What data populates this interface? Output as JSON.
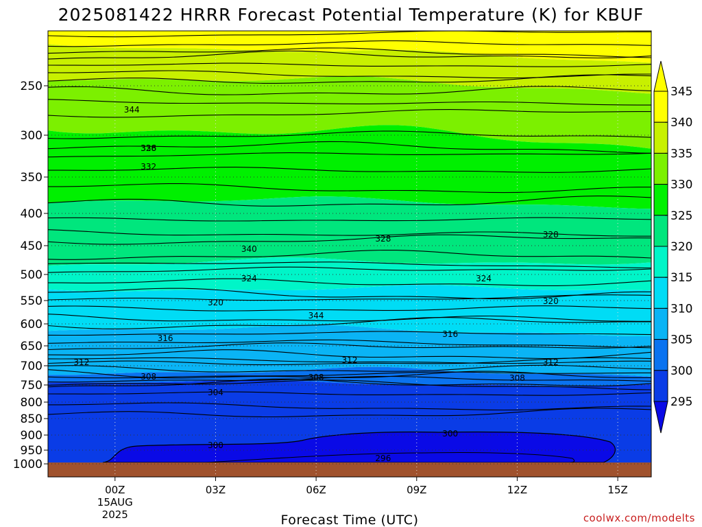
{
  "chart_data": {
    "type": "contour",
    "title": "2025081422 HRRR Forecast Potential Temperature (K) for KBUF",
    "xlabel": "Forecast Time (UTC)",
    "ylabel": "",
    "credit": "coolwx.com/modelts",
    "x_ticks": [
      {
        "label": "00Z",
        "sub": [
          "15AUG",
          "2025"
        ],
        "hour": 0
      },
      {
        "label": "03Z",
        "sub": [],
        "hour": 3
      },
      {
        "label": "06Z",
        "sub": [],
        "hour": 6
      },
      {
        "label": "09Z",
        "sub": [],
        "hour": 9
      },
      {
        "label": "12Z",
        "sub": [],
        "hour": 12
      },
      {
        "label": "15Z",
        "sub": [],
        "hour": 15
      }
    ],
    "x_range_hours": [
      -2,
      16
    ],
    "y_axis": "pressure (hPa), reversed, log-like",
    "y_ticks": [
      250,
      300,
      350,
      400,
      450,
      500,
      550,
      600,
      650,
      700,
      750,
      800,
      850,
      900,
      950,
      1000
    ],
    "colorbar_ticks": [
      295,
      300,
      305,
      310,
      315,
      320,
      325,
      330,
      335,
      340,
      345
    ],
    "colorbar_colors": [
      "#0a0ae6",
      "#0a3ce6",
      "#0a73f0",
      "#0ab4f5",
      "#00dcf5",
      "#00f5c8",
      "#00e67d",
      "#00f000",
      "#7cf000",
      "#c8f000",
      "#ffff00",
      "#ffff00"
    ],
    "ground_color": "#a0522d",
    "contour_levels_labeled": [
      {
        "value": "344",
        "label_at": [
          [
            0.5,
            160
          ],
          [
            6.0,
            460
          ]
        ]
      },
      {
        "value": "340",
        "label_at": [
          [
            4.0,
            363
          ]
        ]
      },
      {
        "value": "336",
        "label_at": [
          [
            1.0,
            216
          ]
        ]
      },
      {
        "value": "332",
        "label_at": [
          [
            1.0,
            243
          ]
        ]
      },
      {
        "value": "328",
        "label_at": [
          [
            1.0,
            216
          ],
          [
            8.0,
            348
          ],
          [
            13.0,
            342
          ]
        ]
      },
      {
        "value": "324",
        "label_at": [
          [
            4.0,
            406
          ],
          [
            11.0,
            406
          ]
        ]
      },
      {
        "value": "320",
        "label_at": [
          [
            3.0,
            441
          ],
          [
            13.0,
            439
          ]
        ]
      },
      {
        "value": "316",
        "label_at": [
          [
            1.5,
            493
          ],
          [
            10.0,
            487
          ]
        ]
      },
      {
        "value": "312",
        "label_at": [
          [
            -1.0,
            528
          ],
          [
            7.0,
            525
          ],
          [
            13.0,
            528
          ]
        ]
      },
      {
        "value": "308",
        "label_at": [
          [
            1.0,
            549
          ],
          [
            6.0,
            550
          ],
          [
            12.0,
            551
          ]
        ]
      },
      {
        "value": "304",
        "label_at": [
          [
            3.0,
            572
          ]
        ]
      },
      {
        "value": "300",
        "label_at": [
          [
            3.0,
            649
          ],
          [
            10.0,
            632
          ]
        ]
      },
      {
        "value": "296",
        "label_at": [
          [
            8.0,
            668
          ]
        ]
      }
    ]
  }
}
